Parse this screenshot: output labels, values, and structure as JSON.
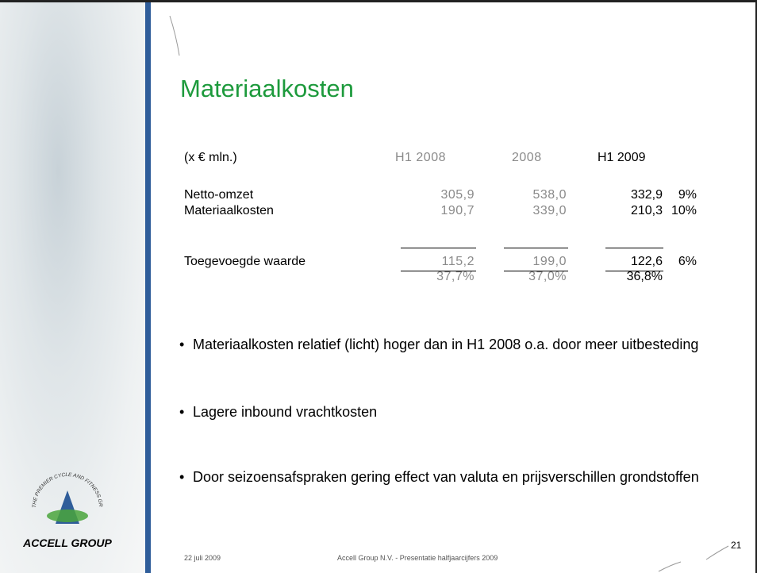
{
  "title": "Materiaalkosten",
  "table": {
    "header": [
      "(x € mln.)",
      "H1 2008",
      "2008",
      "H1 2009"
    ],
    "rows": [
      [
        "Netto-omzet",
        "305,9",
        "538,0",
        "332,9",
        "9%"
      ],
      [
        "Materiaalkosten",
        "190,7",
        "339,0",
        "210,3",
        "10%"
      ],
      [
        "Toegevoegde waarde",
        "115,2",
        "199,0",
        "122,6",
        "6%"
      ],
      [
        "",
        "37,7%",
        "37,0%",
        "36,8%",
        ""
      ]
    ]
  },
  "bullets": [
    "Materiaalkosten relatief (licht) hoger dan in H1 2008 o.a. door meer uitbesteding",
    "Lagere inbound vrachtkosten",
    "Door seizoensafspraken gering effect van valuta en prijsverschillen grondstoffen"
  ],
  "footer": {
    "date": "22 juli 2009",
    "text": "Accell Group N.V.  - Presentatie halfjaarcijfers 2009",
    "page": "21"
  },
  "logo": {
    "name": "ACCELL GROUP",
    "tagline": "THE PREMIER CYCLE AND FITNESS GROUP"
  }
}
